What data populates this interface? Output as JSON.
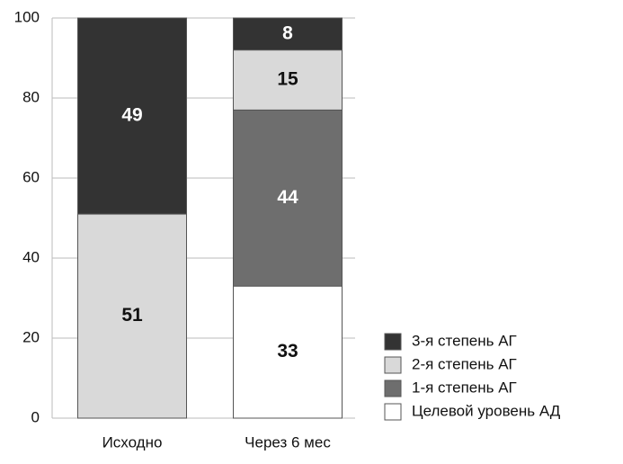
{
  "chart_data": {
    "type": "stacked_bar",
    "categories": [
      "Исходно",
      "Через 6 мес"
    ],
    "series": [
      {
        "name": "Целевой уровень АД",
        "color": "#ffffff",
        "values": [
          null,
          33
        ]
      },
      {
        "name": "1-я степень АГ",
        "color": "#6e6e6e",
        "values": [
          null,
          44
        ]
      },
      {
        "name": "2-я степень АГ",
        "color": "#d9d9d9",
        "values": [
          51,
          15
        ]
      },
      {
        "name": "3-я степень АГ",
        "color": "#333333",
        "values": [
          49,
          8
        ]
      }
    ],
    "ylim": [
      0,
      100
    ],
    "yticks": [
      0,
      20,
      40,
      60,
      80,
      100
    ],
    "grid": true,
    "legend": "lower-right"
  }
}
